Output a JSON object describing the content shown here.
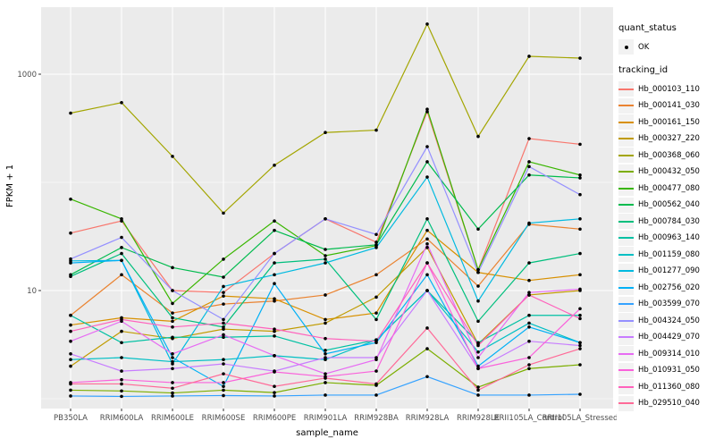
{
  "legend": {
    "quant_status": {
      "title": "quant_status",
      "items": [
        {
          "label": "OK",
          "symbol": "black-point"
        }
      ]
    },
    "tracking_id": {
      "title": "tracking_id"
    }
  },
  "chart_data": {
    "type": "line",
    "title": "",
    "xlabel": "sample_name",
    "ylabel": "FPKM + 1",
    "y_scale": "log10",
    "y_ticks": [
      1000,
      10
    ],
    "y_minor": [
      100,
      1
    ],
    "ylim_log": [
      0.8,
      4170
    ],
    "legend_position": "right",
    "grid": "white major+minor on gray panel",
    "panel_bg": "#EBEBEB",
    "point_color": "#000000",
    "tick_label_color": "#4D4D4D",
    "categories": [
      "PB350LA",
      "RRIM600LA",
      "RRIM600LE",
      "RRIM600SE",
      "RRIM600PE",
      "RRIM901LA",
      "RRIM928BA",
      "RRIM928LA",
      "RRIM928LE",
      "RRII105LA_Control",
      "RRII105LA_Stressed"
    ],
    "series": [
      {
        "name": "Hb_000103_110",
        "color": "#F8766D",
        "values": [
          34,
          44,
          10,
          9.6,
          22,
          46,
          28,
          450,
          15.6,
          254,
          225
        ]
      },
      {
        "name": "Hb_000141_030",
        "color": "#EA8331",
        "values": [
          5.9,
          14,
          6.2,
          7.5,
          8.0,
          9.1,
          14,
          30,
          11,
          41,
          37
        ]
      },
      {
        "name": "Hb_000161_150",
        "color": "#D89000",
        "values": [
          4.8,
          5.6,
          5.2,
          8.9,
          8.4,
          5.4,
          6.2,
          36,
          14.7,
          12.4,
          14
        ]
      },
      {
        "name": "Hb_000327_220",
        "color": "#C09B00",
        "values": [
          2.0,
          4.2,
          3.6,
          4.4,
          4.2,
          5.0,
          8.7,
          25,
          3.2,
          9.1,
          10
        ]
      },
      {
        "name": "Hb_000368_060",
        "color": "#A3A500",
        "values": [
          437,
          546,
          174,
          52,
          144,
          289,
          304,
          2908,
          266,
          1464,
          1408
        ]
      },
      {
        "name": "Hb_000432_050",
        "color": "#7CAE00",
        "values": [
          1.2,
          1.18,
          1.13,
          1.2,
          1.14,
          1.41,
          1.33,
          2.9,
          1.28,
          1.9,
          2.06
        ]
      },
      {
        "name": "Hb_000477_080",
        "color": "#39B600",
        "values": [
          70,
          46,
          7.6,
          19.5,
          44,
          21,
          26,
          474,
          15.6,
          155,
          117
        ]
      },
      {
        "name": "Hb_000562_040",
        "color": "#00BB4E",
        "values": [
          14,
          25,
          16.3,
          13.3,
          36,
          24,
          26.5,
          155,
          37,
          117,
          110
        ]
      },
      {
        "name": "Hb_000784_030",
        "color": "#00BF7D",
        "values": [
          13.5,
          22,
          5.6,
          4.6,
          18,
          19.5,
          5.4,
          46,
          5.2,
          18,
          22
        ]
      },
      {
        "name": "Hb_000963_140",
        "color": "#00C1A3",
        "values": [
          5.9,
          3.3,
          3.7,
          3.7,
          3.8,
          2.8,
          3.5,
          10,
          3.3,
          5.9,
          5.9
        ]
      },
      {
        "name": "Hb_001159_080",
        "color": "#00BFC4",
        "values": [
          2.3,
          2.4,
          2.2,
          2.3,
          2.5,
          2.3,
          3.5,
          10,
          2.7,
          5.0,
          3.3
        ]
      },
      {
        "name": "Hb_001277_090",
        "color": "#00BAE0",
        "values": [
          18.8,
          19,
          2.1,
          10.9,
          14,
          18,
          25,
          112,
          8.0,
          42,
          46
        ]
      },
      {
        "name": "Hb_002756_020",
        "color": "#00B0F6",
        "values": [
          18,
          19,
          2.4,
          1.3,
          11.6,
          2.6,
          3.3,
          14,
          2.0,
          4.6,
          3.3
        ]
      },
      {
        "name": "Hb_003599_070",
        "color": "#35A2FF",
        "values": [
          1.06,
          1.05,
          1.06,
          1.07,
          1.06,
          1.08,
          1.08,
          1.6,
          1.08,
          1.08,
          1.1
        ]
      },
      {
        "name": "Hb_004324_050",
        "color": "#9590FF",
        "values": [
          19.6,
          31,
          10,
          5.4,
          22,
          46,
          33,
          214,
          14.7,
          140,
          77
        ]
      },
      {
        "name": "Hb_004429_070",
        "color": "#C77CFF",
        "values": [
          2.6,
          1.8,
          1.9,
          2.1,
          1.8,
          2.4,
          2.4,
          10,
          1.9,
          3.4,
          3.1
        ]
      },
      {
        "name": "Hb_009314_010",
        "color": "#E76BF3",
        "values": [
          3.4,
          5.2,
          2.6,
          3.9,
          2.5,
          1.7,
          2.3,
          27,
          2.4,
          9.6,
          10.3
        ]
      },
      {
        "name": "Hb_010931_050",
        "color": "#FA62DB",
        "values": [
          1.41,
          1.5,
          1.41,
          1.41,
          1.77,
          1.6,
          1.8,
          18,
          1.9,
          2.4,
          6.8
        ]
      },
      {
        "name": "Hb_011360_080",
        "color": "#FF62BC",
        "values": [
          4.2,
          5.4,
          4.6,
          5.0,
          4.4,
          3.6,
          3.4,
          18,
          3.1,
          9.1,
          5.5
        ]
      },
      {
        "name": "Hb_029510_040",
        "color": "#FF6A98",
        "values": [
          1.37,
          1.37,
          1.25,
          1.7,
          1.3,
          1.55,
          1.37,
          4.5,
          1.2,
          2.06,
          2.9
        ]
      }
    ]
  }
}
